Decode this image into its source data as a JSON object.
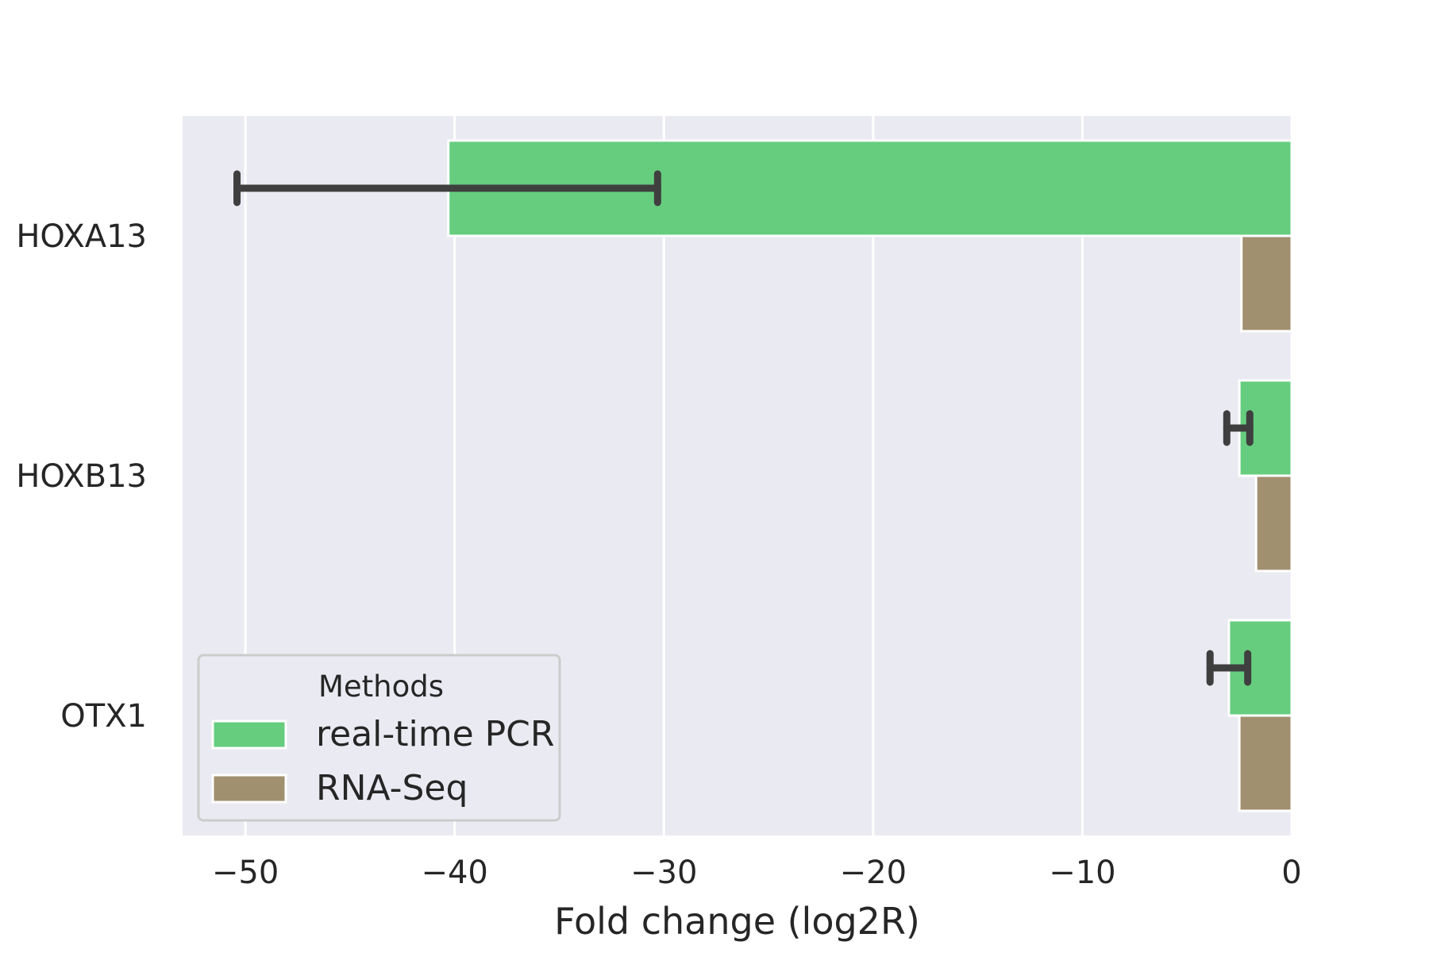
{
  "chart_data": {
    "type": "bar",
    "orientation": "horizontal",
    "categories": [
      "HOXA13",
      "HOXB13",
      "OTX1"
    ],
    "series": [
      {
        "name": "real-time PCR",
        "color": "#66cd7f",
        "values": [
          -40.3,
          -2.5,
          -3.0
        ],
        "error_low": [
          -50.4,
          -3.1,
          -3.9
        ],
        "error_high": [
          -30.3,
          -2.0,
          -2.1
        ]
      },
      {
        "name": "RNA-Seq",
        "color": "#a0906f",
        "values": [
          -2.4,
          -1.7,
          -2.5
        ]
      }
    ],
    "xlabel": "Fold change (log2R)",
    "xlim": [
      -53,
      0
    ],
    "xticks": [
      -50,
      -40,
      -30,
      -20,
      -10,
      0
    ],
    "xtick_labels": [
      "−50",
      "−40",
      "−30",
      "−20",
      "−10",
      "0"
    ],
    "grid": true,
    "legend": {
      "title": "Methods",
      "position": "lower-left"
    },
    "background": "#eaeaf2",
    "error_bar_color": "#3f3f3f"
  }
}
